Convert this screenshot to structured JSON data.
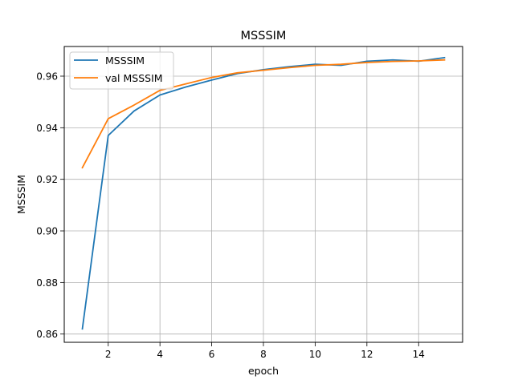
{
  "chart_data": {
    "type": "line",
    "title": "MSSSIM",
    "xlabel": "epoch",
    "ylabel": "MSSSIM",
    "xlim": [
      0.3,
      15.7
    ],
    "ylim": [
      0.8568,
      0.9715
    ],
    "x_ticks": [
      2,
      4,
      6,
      8,
      10,
      12,
      14
    ],
    "y_ticks": [
      0.86,
      0.88,
      0.9,
      0.92,
      0.94,
      0.96
    ],
    "x_tick_labels": [
      "2",
      "4",
      "6",
      "8",
      "10",
      "12",
      "14"
    ],
    "y_tick_labels": [
      "0.86",
      "0.88",
      "0.90",
      "0.92",
      "0.94",
      "0.96"
    ],
    "grid": true,
    "legend_position": "upper-left",
    "x": [
      1,
      2,
      3,
      4,
      5,
      6,
      7,
      8,
      9,
      10,
      11,
      12,
      13,
      14,
      15
    ],
    "series": [
      {
        "name": "MSSSIM",
        "color": "#1f77b4",
        "values": [
          0.862,
          0.937,
          0.9465,
          0.9527,
          0.9558,
          0.9585,
          0.961,
          0.9625,
          0.9637,
          0.9646,
          0.9642,
          0.9658,
          0.9663,
          0.9658,
          0.9672
        ]
      },
      {
        "name": "val MSSSIM",
        "color": "#ff7f0e",
        "values": [
          0.9245,
          0.9435,
          0.9488,
          0.9545,
          0.957,
          0.9595,
          0.9613,
          0.9623,
          0.9633,
          0.9642,
          0.9646,
          0.9653,
          0.9657,
          0.9659,
          0.9663
        ]
      }
    ]
  }
}
